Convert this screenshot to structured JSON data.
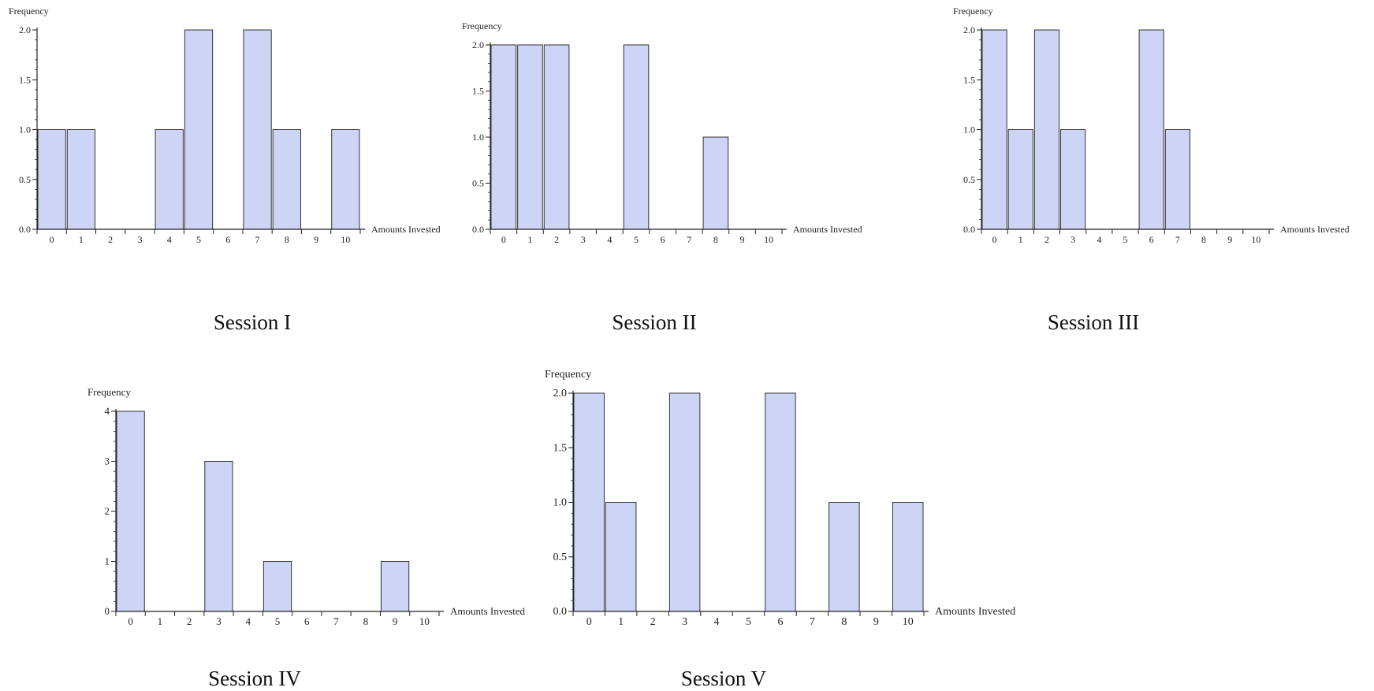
{
  "chart_data": [
    {
      "type": "bar",
      "caption": "Session I",
      "ylabel": "Frequency",
      "xlabel": "Amounts Invested",
      "categories": [
        "0",
        "1",
        "2",
        "3",
        "4",
        "5",
        "6",
        "7",
        "8",
        "9",
        "10"
      ],
      "values": [
        1,
        1,
        0,
        0,
        1,
        2,
        0,
        2,
        1,
        0,
        1
      ],
      "ylim": [
        0,
        2.0
      ],
      "yticks": [
        "0.0",
        "0.5",
        "1.0",
        "1.5",
        "2.0"
      ],
      "bar_color": "#cdd4f5"
    },
    {
      "type": "bar",
      "caption": "Session II",
      "ylabel": "Frequency",
      "xlabel": "Amounts Invested",
      "categories": [
        "0",
        "1",
        "2",
        "3",
        "4",
        "5",
        "6",
        "7",
        "8",
        "9",
        "10"
      ],
      "values": [
        2,
        2,
        2,
        0,
        0,
        2,
        0,
        0,
        1,
        0,
        0
      ],
      "ylim": [
        0,
        2.0
      ],
      "yticks": [
        "0.0",
        "0.5",
        "1.0",
        "1.5",
        "2.0"
      ],
      "bar_color": "#cdd4f5"
    },
    {
      "type": "bar",
      "caption": "Session III",
      "ylabel": "Frequency",
      "xlabel": "Amounts Invested",
      "categories": [
        "0",
        "1",
        "2",
        "3",
        "4",
        "5",
        "6",
        "7",
        "8",
        "9",
        "10"
      ],
      "values": [
        2,
        1,
        2,
        1,
        0,
        0,
        2,
        1,
        0,
        0,
        0
      ],
      "ylim": [
        0,
        2.0
      ],
      "yticks": [
        "0.0",
        "0.5",
        "1.0",
        "1.5",
        "2.0"
      ],
      "bar_color": "#cdd4f5"
    },
    {
      "type": "bar",
      "caption": "Session IV",
      "ylabel": "Frequency",
      "xlabel": "Amounts Invested",
      "categories": [
        "0",
        "1",
        "2",
        "3",
        "4",
        "5",
        "6",
        "7",
        "8",
        "9",
        "10"
      ],
      "values": [
        4,
        0,
        0,
        3,
        0,
        1,
        0,
        0,
        0,
        1,
        0
      ],
      "ylim": [
        0,
        4
      ],
      "yticks": [
        "0",
        "1",
        "2",
        "3",
        "4"
      ],
      "bar_color": "#cdd4f5"
    },
    {
      "type": "bar",
      "caption": "Session V",
      "ylabel": "Frequency",
      "xlabel": "Amounts Invested",
      "categories": [
        "0",
        "1",
        "2",
        "3",
        "4",
        "5",
        "6",
        "7",
        "8",
        "9",
        "10"
      ],
      "values": [
        2,
        1,
        0,
        2,
        0,
        0,
        2,
        0,
        1,
        0,
        1
      ],
      "ylim": [
        0,
        2.0
      ],
      "yticks": [
        "0.0",
        "0.5",
        "1.0",
        "1.5",
        "2.0"
      ],
      "bar_color": "#cdd4f5"
    }
  ]
}
